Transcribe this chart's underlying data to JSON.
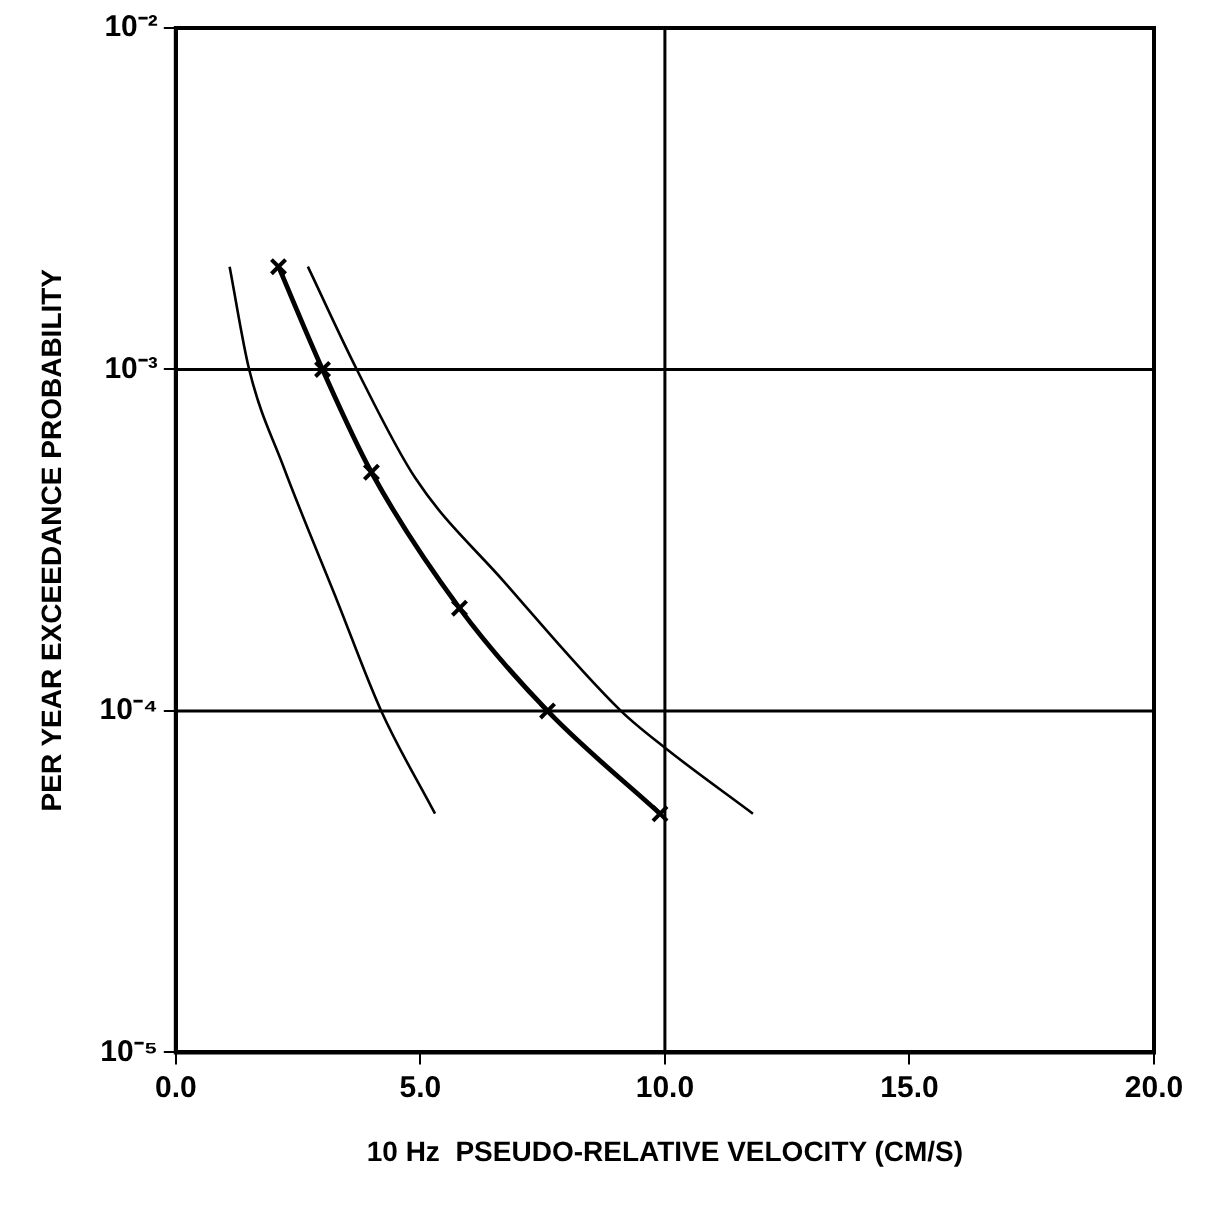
{
  "chart_data": {
    "type": "line",
    "xlabel": "10 Hz  PSEUDO-RELATIVE VELOCITY (CM/S)",
    "ylabel": "PER YEAR EXCEEDANCE PROBABILITY",
    "log": "y",
    "xlim": [
      0,
      20
    ],
    "xticks": [
      {
        "value": 0,
        "label": "0.0"
      },
      {
        "value": 5,
        "label": "5.0"
      },
      {
        "value": 10,
        "label": "10.0"
      },
      {
        "value": 15,
        "label": "15.0"
      },
      {
        "value": 20,
        "label": "20.0"
      }
    ],
    "ylim": [
      1e-05,
      0.01
    ],
    "yticks": [
      {
        "value": 1e-05,
        "label": "10⁻⁵"
      },
      {
        "value": 0.0001,
        "label": "10⁻⁴"
      },
      {
        "value": 0.001,
        "label": "10⁻³"
      },
      {
        "value": 0.01,
        "label": "10⁻²"
      }
    ],
    "grid": false,
    "legend": false,
    "ref_lines": [
      {
        "axis": "x",
        "value": 10
      },
      {
        "axis": "y",
        "value": 0.001
      },
      {
        "axis": "y",
        "value": 0.0001
      }
    ],
    "series": [
      {
        "color": "#000000",
        "x": [
          1.1,
          1.5,
          2.2,
          3.3,
          4.2,
          5.3
        ],
        "values": [
          0.002,
          0.001,
          0.00052,
          0.00021,
          0.0001,
          5e-05
        ],
        "marker": "none"
      },
      {
        "color": "#000000",
        "x": [
          2.1,
          3.0,
          4.0,
          5.8,
          7.6,
          9.9
        ],
        "values": [
          0.002,
          0.001,
          0.0005,
          0.0002,
          0.0001,
          5e-05
        ],
        "marker": "cross"
      },
      {
        "color": "#000000",
        "x": [
          2.7,
          3.7,
          4.9,
          6.7,
          9.1,
          10.0,
          11.8
        ],
        "values": [
          0.002,
          0.001,
          0.00048,
          0.00024,
          0.0001,
          7.8e-05,
          5e-05
        ],
        "marker": "none"
      }
    ]
  }
}
